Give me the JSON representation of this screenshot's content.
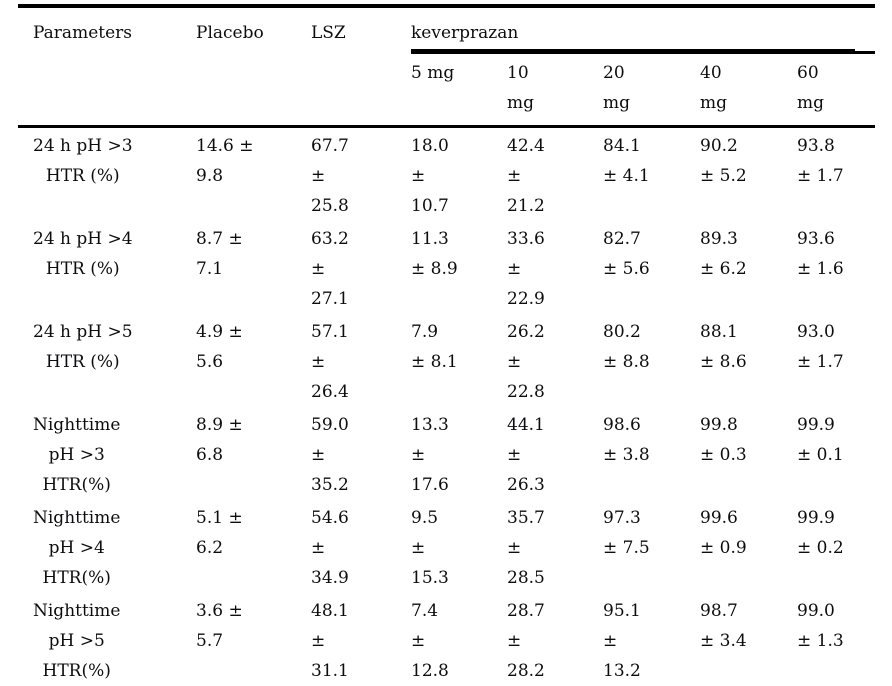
{
  "page": {
    "background_color": "#ffffff",
    "text_color": "#0d0d10",
    "rule_color": "#000000"
  },
  "table": {
    "header": {
      "parameters": "Parameters",
      "placebo": "Placebo",
      "lsz": "LSZ",
      "group": "keverprazan",
      "doses": [
        "5 mg",
        "10\nmg",
        "20\nmg",
        "40\nmg",
        "60\nmg"
      ]
    },
    "rows": [
      {
        "parameter": "24 h pH >3\nHTR (%)",
        "values": [
          "14.6 ±\n9.8",
          "67.7\n±\n25.8",
          "18.0\n±\n10.7",
          "42.4\n±\n21.2",
          "84.1\n± 4.1",
          "90.2\n± 5.2",
          "93.8\n± 1.7"
        ]
      },
      {
        "parameter": "24 h pH >4\nHTR (%)",
        "values": [
          "8.7 ±\n7.1",
          "63.2\n±\n27.1",
          "11.3\n± 8.9",
          "33.6\n±\n22.9",
          "82.7\n± 5.6",
          "89.3\n± 6.2",
          "93.6\n± 1.6"
        ]
      },
      {
        "parameter": "24 h pH >5\nHTR (%)",
        "values": [
          "4.9 ±\n5.6",
          "57.1\n±\n26.4",
          "7.9\n± 8.1",
          "26.2\n±\n22.8",
          "80.2\n± 8.8",
          "88.1\n± 8.6",
          "93.0\n± 1.7"
        ]
      },
      {
        "parameter": "Nighttime\npH >3\nHTR(%)",
        "values": [
          "8.9 ±\n6.8",
          "59.0\n±\n35.2",
          "13.3\n±\n17.6",
          "44.1\n±\n26.3",
          "98.6\n± 3.8",
          "99.8\n± 0.3",
          "99.9\n± 0.1"
        ]
      },
      {
        "parameter": "Nighttime\npH >4\nHTR(%)",
        "values": [
          "5.1 ±\n6.2",
          "54.6\n±\n34.9",
          "9.5\n±\n15.3",
          "35.7\n±\n28.5",
          "97.3\n± 7.5",
          "99.6\n± 0.9",
          "99.9\n± 0.2"
        ]
      },
      {
        "parameter": "Nighttime\npH >5\nHTR(%)",
        "values": [
          "3.6 ±\n5.7",
          "48.1\n±\n31.1",
          "7.4\n±\n12.8",
          "28.7\n±\n28.2",
          "95.1\n±\n13.2",
          "98.7\n± 3.4",
          "99.0\n± 1.3"
        ]
      }
    ]
  }
}
